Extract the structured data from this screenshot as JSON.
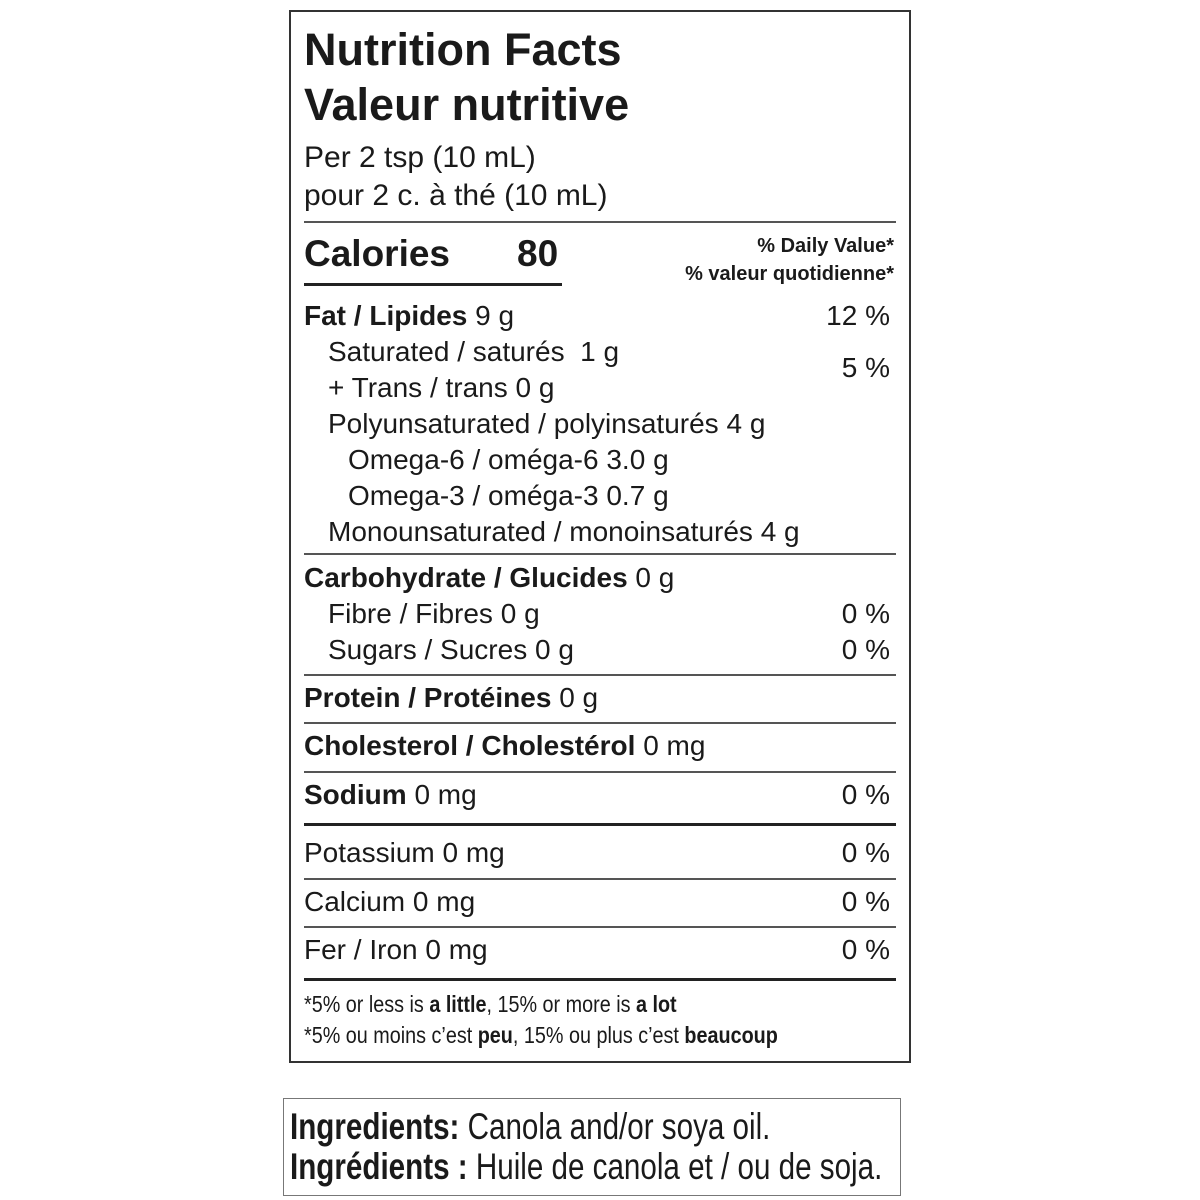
{
  "nutrition_facts": {
    "title": [
      "Nutrition Facts",
      "Valeur nutritive"
    ],
    "serving": [
      "Per 2 tsp (10 mL)",
      "pour 2 c. à thé (10 mL)"
    ],
    "calories": {
      "label": "Calories",
      "value": 80
    },
    "daily_value_heading": [
      "% Daily Value*",
      "% valeur quotidienne*"
    ],
    "nutrients": [
      {
        "name": "Fat / Lipides",
        "amount": "9 g",
        "dv": "12 %"
      },
      {
        "name": "Saturated / saturés",
        "amount": "1 g",
        "dv": "5 %"
      },
      {
        "name": "+ Trans / trans",
        "amount": "0 g"
      },
      {
        "name": "Polyunsaturated / polyinsaturés",
        "amount": "4 g"
      },
      {
        "name": "Omega-6 / oméga-6",
        "amount": "3.0 g"
      },
      {
        "name": "Omega-3 / oméga-3",
        "amount": "0.7 g"
      },
      {
        "name": "Monounsaturated / monoinsaturés",
        "amount": "4 g"
      },
      {
        "name": "Carbohydrate / Glucides",
        "amount": "0 g"
      },
      {
        "name": "Fibre / Fibres",
        "amount": "0 g",
        "dv": "0 %"
      },
      {
        "name": "Sugars / Sucres",
        "amount": "0 g",
        "dv": "0 %"
      },
      {
        "name": "Protein / Protéines",
        "amount": "0 g"
      },
      {
        "name": "Cholesterol / Cholestérol",
        "amount": "0 mg"
      },
      {
        "name": "Sodium",
        "amount": "0 mg",
        "dv": "0 %"
      },
      {
        "name": "Potassium",
        "amount": "0 mg",
        "dv": "0 %"
      },
      {
        "name": "Calcium",
        "amount": "0 mg",
        "dv": "0 %"
      },
      {
        "name": "Fer / Iron",
        "amount": "0 mg",
        "dv": "0 %"
      }
    ],
    "footnote": [
      [
        "*5% or less is ",
        "a little",
        ", 15% or more is ",
        "a lot"
      ],
      [
        "*5% ou moins c’est ",
        "peu",
        ", 15% ou plus c’est ",
        "beaucoup"
      ]
    ]
  },
  "ingredients": {
    "en": {
      "label": "Ingredients:",
      "text": "Canola and/or soya oil."
    },
    "fr": {
      "label": "Ingrédients :",
      "text": "Huile de canola et / ou de soja."
    }
  }
}
